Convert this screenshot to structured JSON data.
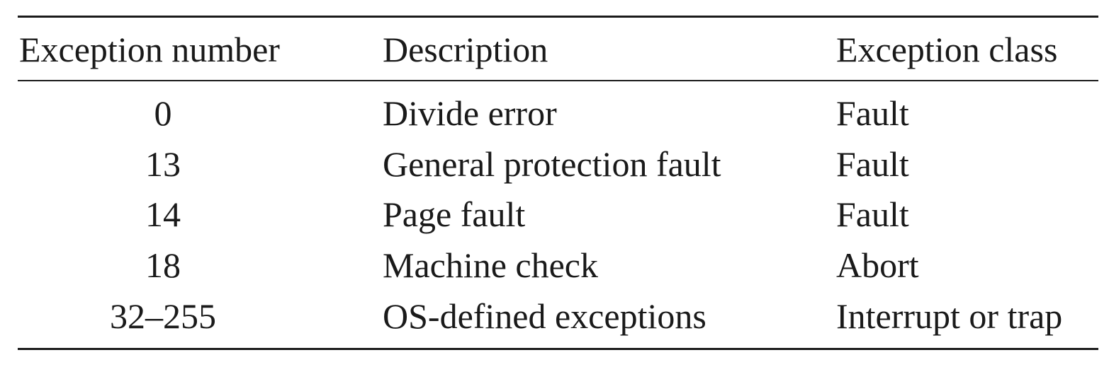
{
  "table": {
    "headers": {
      "number": "Exception number",
      "description": "Description",
      "class": "Exception class"
    },
    "rows": [
      {
        "number": "0",
        "description": "Divide error",
        "class": "Fault"
      },
      {
        "number": "13",
        "description": "General protection fault",
        "class": "Fault"
      },
      {
        "number": "14",
        "description": "Page fault",
        "class": "Fault"
      },
      {
        "number": "18",
        "description": "Machine check",
        "class": "Abort"
      },
      {
        "number": "32–255",
        "description": "OS-defined exceptions",
        "class": "Interrupt or trap"
      }
    ]
  },
  "colors": {
    "text": "#1a1a1a",
    "background": "#ffffff"
  }
}
